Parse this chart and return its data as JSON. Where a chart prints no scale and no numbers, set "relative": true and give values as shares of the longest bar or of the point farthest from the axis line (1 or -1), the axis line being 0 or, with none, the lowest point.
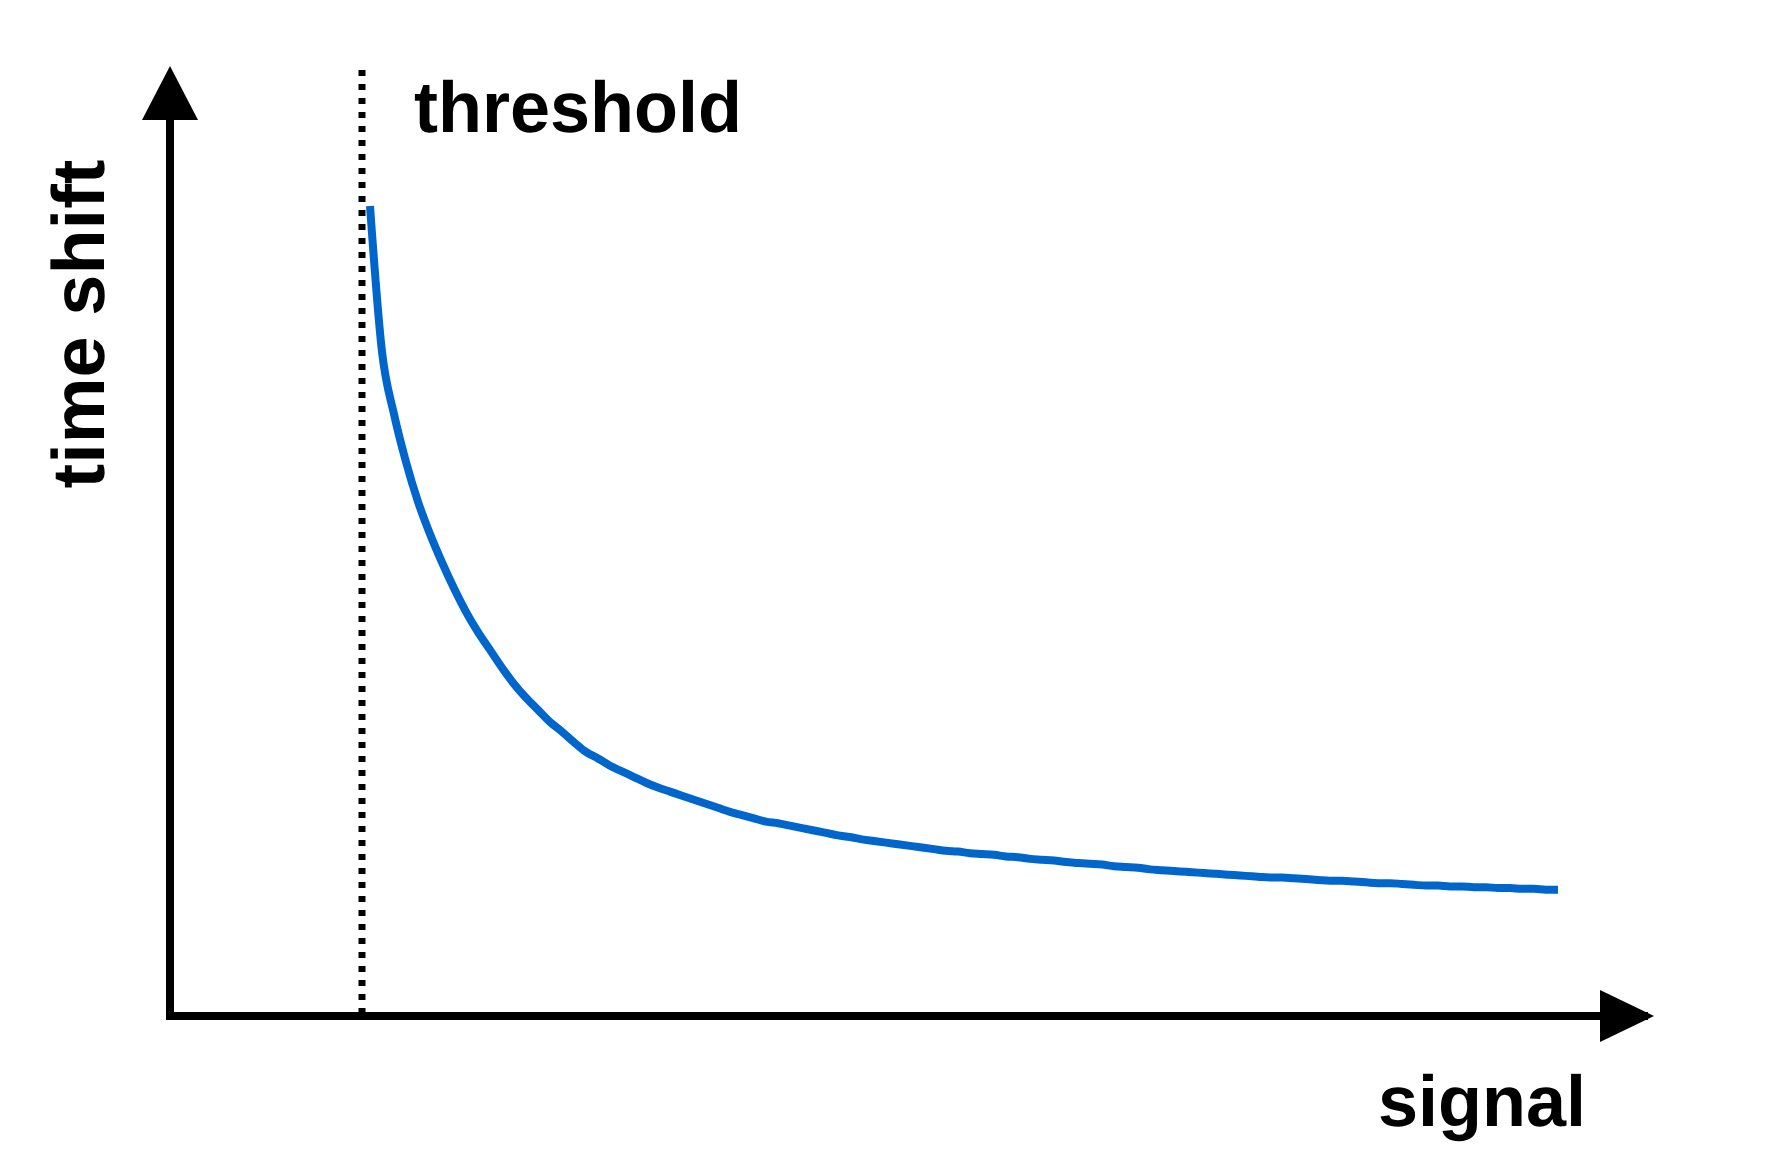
{
  "chart_data": {
    "type": "line",
    "xlabel": "signal",
    "ylabel": "time shift",
    "relative": true,
    "annotations": [
      "threshold"
    ],
    "categories": [
      null,
      null,
      null,
      null,
      null,
      null,
      null,
      null,
      null,
      null,
      null,
      null,
      null,
      null,
      null,
      null,
      null,
      null,
      null,
      null,
      null,
      null,
      null,
      null,
      null,
      null,
      null,
      null,
      null,
      null,
      null,
      null,
      null,
      null,
      null,
      null,
      null,
      null,
      null,
      null,
      null,
      null,
      null,
      null,
      null,
      null,
      null,
      null,
      null,
      null,
      null,
      null,
      null,
      null,
      null,
      null,
      null,
      null,
      null,
      null,
      null,
      null,
      null,
      null,
      null,
      null,
      null,
      null,
      null,
      null,
      null,
      null,
      null,
      null,
      null,
      null,
      null,
      null,
      null,
      null,
      null,
      null,
      null,
      null,
      null,
      null,
      null,
      null,
      null,
      null,
      null,
      null,
      null,
      null,
      null,
      null,
      null,
      null,
      null,
      null
    ],
    "series": [
      {
        "color": "#0066cc",
        "values": [
          1,
          0.82,
          0.743,
          0.684,
          0.635,
          0.595,
          0.56,
          0.528,
          0.499,
          0.474,
          0.452,
          0.43,
          0.41,
          0.393,
          0.378,
          0.363,
          0.351,
          0.338,
          0.326,
          0.318,
          0.309,
          0.302,
          0.295,
          0.288,
          0.282,
          0.277,
          0.272,
          0.267,
          0.262,
          0.257,
          0.252,
          0.248,
          0.244,
          0.24,
          0.238,
          0.235,
          0.232,
          0.229,
          0.226,
          0.223,
          0.221,
          0.218,
          0.216,
          0.214,
          0.212,
          0.21,
          0.208,
          0.206,
          0.204,
          0.203,
          0.201,
          0.2,
          0.199,
          0.197,
          0.196,
          0.194,
          0.193,
          0.192,
          0.19,
          0.189,
          0.188,
          0.187,
          0.185,
          0.184,
          0.183,
          0.181,
          0.18,
          0.179,
          0.178,
          0.177,
          0.176,
          0.175,
          0.174,
          0.173,
          0.172,
          0.171,
          0.171,
          0.17,
          0.169,
          0.168,
          0.167,
          0.167,
          0.166,
          0.165,
          0.164,
          0.164,
          0.163,
          0.162,
          0.161,
          0.161,
          0.16,
          0.16,
          0.159,
          0.159,
          0.158,
          0.158,
          0.157,
          0.157,
          0.156,
          0.156
        ]
      }
    ]
  }
}
